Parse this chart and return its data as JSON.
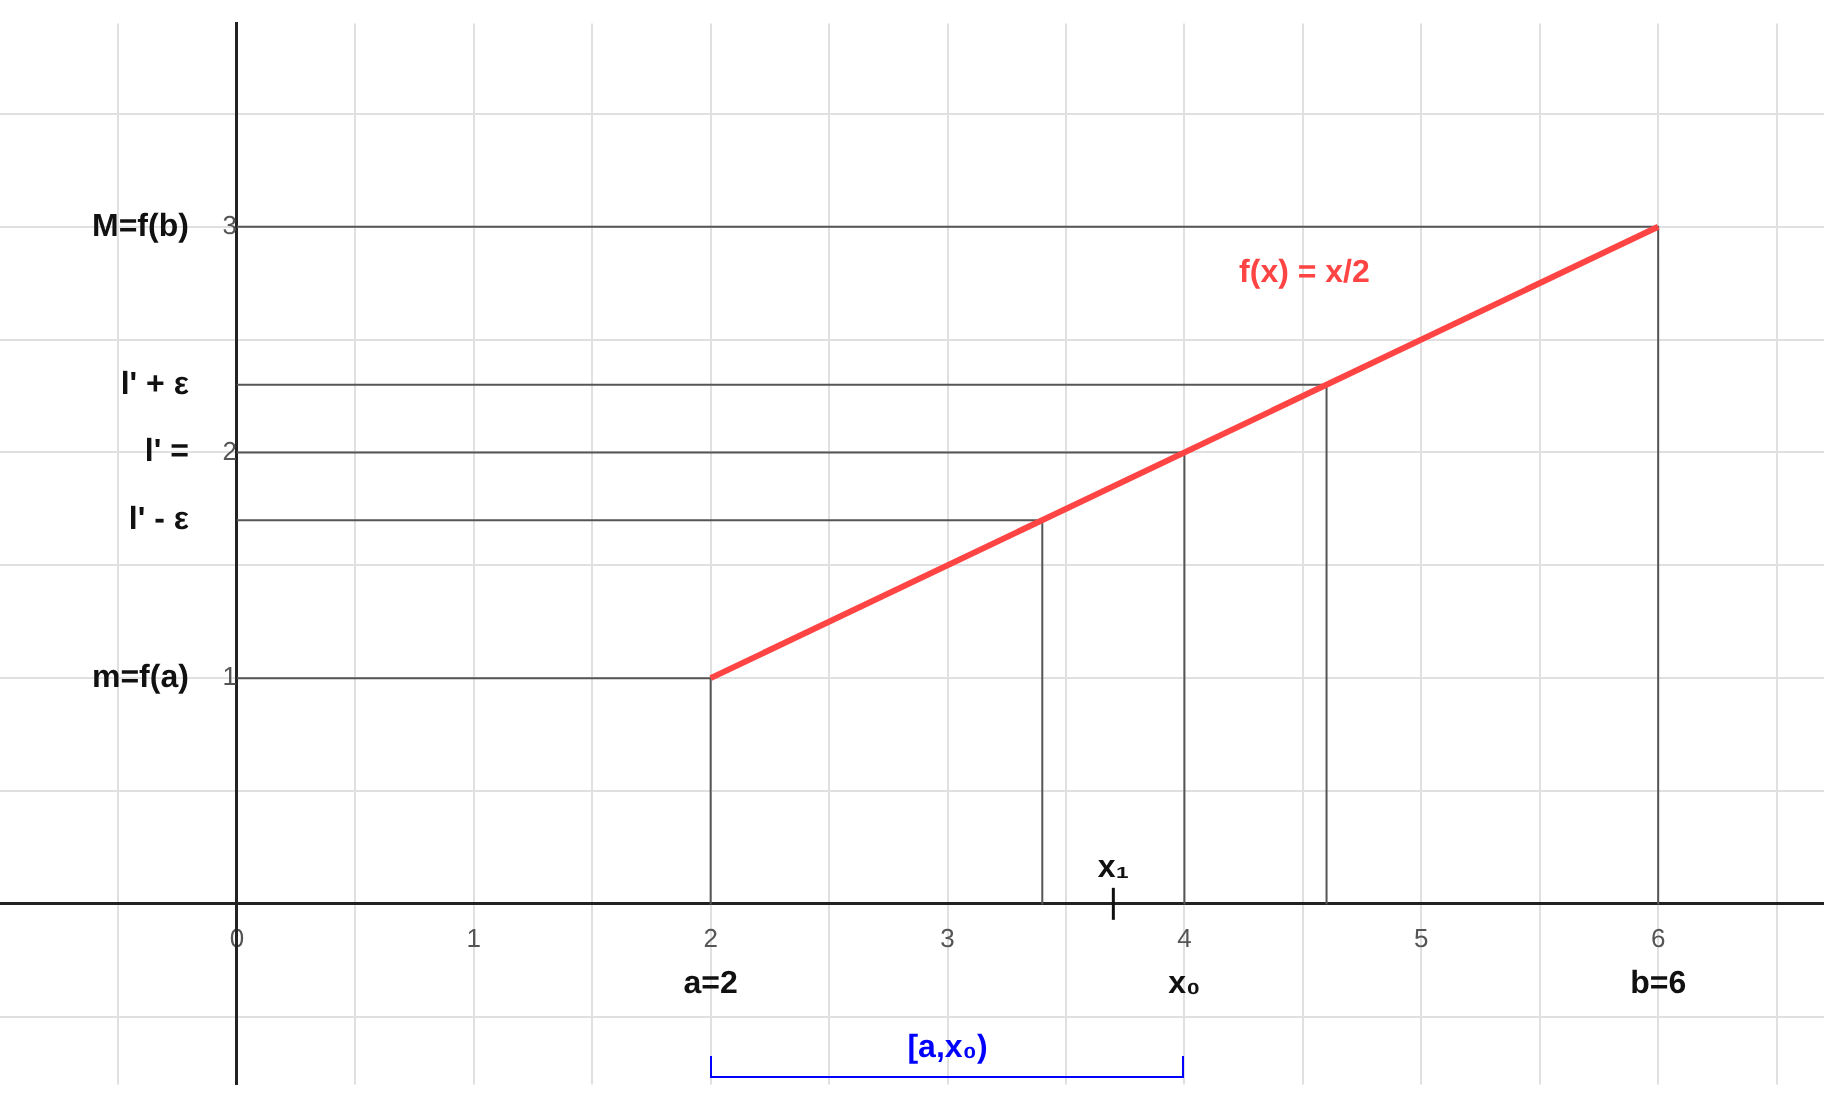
{
  "chart_data": {
    "type": "line",
    "xlim": [
      -1,
      6.7
    ],
    "ylim": [
      -0.8,
      3.9
    ],
    "xticks": [
      {
        "value": -0.5,
        "label": null
      },
      0,
      {
        "value": 0.5,
        "label": null
      },
      1,
      {
        "value": 1.5,
        "label": null
      },
      2,
      {
        "value": 2.5,
        "label": null
      },
      3,
      {
        "value": 3.5,
        "label": null
      },
      4,
      {
        "value": 4.5,
        "label": null
      },
      5,
      {
        "value": 5.5,
        "label": null
      },
      6,
      {
        "value": 6.5,
        "label": null
      }
    ],
    "yticks": [
      {
        "value": -0.5,
        "label": null
      },
      {
        "value": 0,
        "label": null
      },
      {
        "value": 0.5,
        "label": null
      },
      1,
      {
        "value": 1.5,
        "label": null
      },
      2,
      {
        "value": 2.5,
        "label": null
      },
      3,
      {
        "value": 3.5,
        "label": null
      }
    ],
    "grid": true,
    "legend": false,
    "series": [
      {
        "name": "f(x) = x/2",
        "color": "#ff4444",
        "x": [
          2,
          6
        ],
        "values": [
          1,
          3
        ]
      },
      {
        "color": "#555555",
        "x": [
          0,
          2,
          2
        ],
        "values": [
          1,
          1,
          0
        ]
      },
      {
        "color": "#555555",
        "x": [
          0,
          3.4,
          3.4
        ],
        "values": [
          1.7,
          1.7,
          0
        ]
      },
      {
        "color": "#555555",
        "x": [
          0,
          4,
          4
        ],
        "values": [
          2,
          2,
          0
        ]
      },
      {
        "color": "#555555",
        "x": [
          0,
          4.6,
          4.6
        ],
        "values": [
          2.3,
          2.3,
          0
        ]
      },
      {
        "color": "#555555",
        "x": [
          0,
          6,
          6
        ],
        "values": [
          3,
          3,
          0
        ]
      }
    ],
    "ref_lines": [
      {
        "axis": "x",
        "value": 3.7,
        "label": "x₁",
        "color": "#111111"
      }
    ],
    "annotations": [
      "m=f(a)",
      "l' - ε",
      "l' =",
      "l' + ε",
      "M=f(b)",
      "a=2",
      "x₀",
      "b=6",
      "[a,x₀)"
    ]
  }
}
